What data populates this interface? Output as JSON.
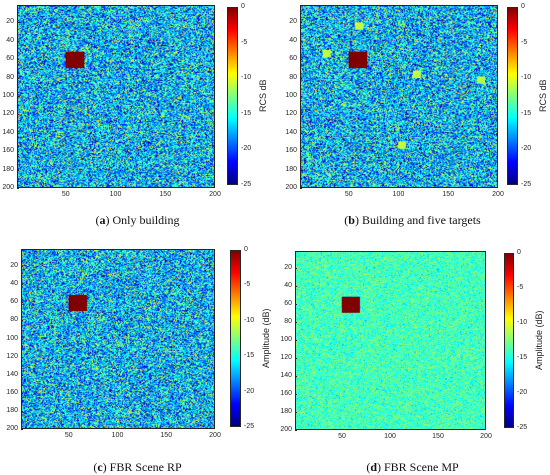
{
  "chart_data": [
    {
      "type": "heatmap",
      "id": "a",
      "caption_tag": "a",
      "caption_text": "Only building",
      "colorbar_label": "RCS dB",
      "x_ticks": [
        50,
        100,
        150,
        200
      ],
      "y_ticks": [
        20,
        40,
        60,
        80,
        100,
        120,
        140,
        160,
        180,
        200
      ],
      "colorbar_ticks": [
        0,
        -5,
        -10,
        -15,
        -20,
        -25
      ],
      "xlim": [
        1,
        200
      ],
      "ylim": [
        1,
        200
      ],
      "clim": [
        -25,
        0
      ],
      "background_level_db": -17,
      "noise_spread_db": 7,
      "targets": [
        {
          "name": "building",
          "x_range": [
            50,
            68
          ],
          "y_range": [
            52,
            69
          ],
          "level_db": 0
        }
      ]
    },
    {
      "type": "heatmap",
      "id": "b",
      "caption_tag": "b",
      "caption_text": "Building and five targets",
      "colorbar_label": "RCS dB",
      "x_ticks": [
        50,
        100,
        150,
        200
      ],
      "y_ticks": [
        20,
        40,
        60,
        80,
        100,
        120,
        140,
        160,
        180,
        200
      ],
      "colorbar_ticks": [
        0,
        -5,
        -10,
        -15,
        -20,
        -25
      ],
      "xlim": [
        1,
        200
      ],
      "ylim": [
        1,
        200
      ],
      "clim": [
        -25,
        0
      ],
      "background_level_db": -17,
      "noise_spread_db": 7,
      "targets": [
        {
          "name": "building",
          "x_range": [
            50,
            68
          ],
          "y_range": [
            52,
            69
          ],
          "level_db": 0
        },
        {
          "name": "target-1",
          "x_range": [
            57,
            64
          ],
          "y_range": [
            20,
            27
          ],
          "level_db": -11
        },
        {
          "name": "target-2",
          "x_range": [
            24,
            31
          ],
          "y_range": [
            50,
            57
          ],
          "level_db": -11
        },
        {
          "name": "target-3",
          "x_range": [
            115,
            122
          ],
          "y_range": [
            73,
            80
          ],
          "level_db": -11
        },
        {
          "name": "target-4",
          "x_range": [
            180,
            187
          ],
          "y_range": [
            79,
            86
          ],
          "level_db": -11
        },
        {
          "name": "target-5",
          "x_range": [
            100,
            107
          ],
          "y_range": [
            150,
            157
          ],
          "level_db": -11
        }
      ]
    },
    {
      "type": "heatmap",
      "id": "c",
      "caption_tag": "c",
      "caption_text": "FBR Scene RP",
      "colorbar_label": "Amplitude (dB)",
      "x_ticks": [
        50,
        100,
        150,
        200
      ],
      "y_ticks": [
        20,
        40,
        60,
        80,
        100,
        120,
        140,
        160,
        180,
        200
      ],
      "colorbar_ticks": [
        0,
        -5,
        -10,
        -15,
        -20,
        -25
      ],
      "xlim": [
        1,
        200
      ],
      "ylim": [
        1,
        200
      ],
      "clim": [
        -25,
        0
      ],
      "background_level_db": -17,
      "noise_spread_db": 7,
      "targets": [
        {
          "name": "building",
          "x_range": [
            50,
            68
          ],
          "y_range": [
            52,
            69
          ],
          "level_db": 0
        }
      ]
    },
    {
      "type": "heatmap",
      "id": "d",
      "caption_tag": "d",
      "caption_text": "FBR Scene MP",
      "colorbar_label": "Amplitude (dB)",
      "x_ticks": [
        50,
        100,
        150,
        200
      ],
      "y_ticks": [
        20,
        40,
        60,
        80,
        100,
        120,
        140,
        160,
        180,
        200
      ],
      "colorbar_ticks": [
        0,
        -5,
        -10,
        -15,
        -20,
        -25
      ],
      "xlim": [
        1,
        200
      ],
      "ylim": [
        1,
        200
      ],
      "clim": [
        -25,
        0
      ],
      "background_level_db": -14,
      "noise_spread_db": 2.5,
      "targets": [
        {
          "name": "building",
          "x_range": [
            50,
            68
          ],
          "y_range": [
            52,
            69
          ],
          "level_db": 0
        }
      ]
    }
  ],
  "colormap": "jet"
}
